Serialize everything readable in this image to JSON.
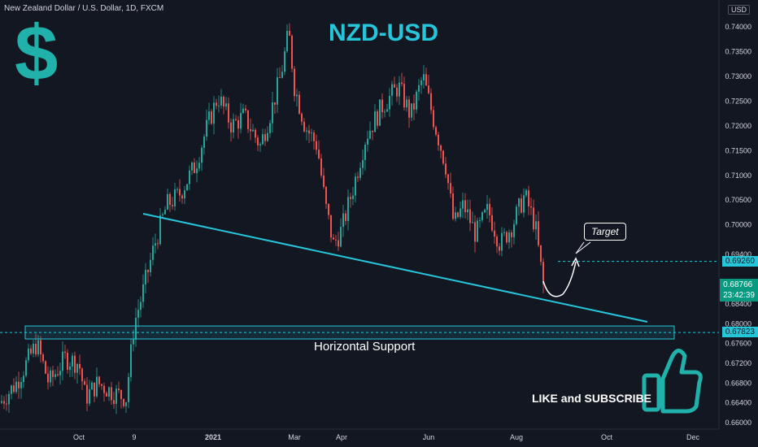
{
  "header": {
    "instrument": "New Zealand Dollar / U.S. Dollar, 1D, FXCM",
    "currency_badge": "USD"
  },
  "annotations": {
    "title": "NZD-USD",
    "dollar_sign": "$",
    "support_label": "Horizontal Support",
    "target_label": "Target",
    "cta": "LIKE and SUBSCRIBE"
  },
  "price_tags": {
    "target": "0.69260",
    "current": "0.68766",
    "countdown": "23:42:39",
    "support": "0.67823"
  },
  "colors": {
    "background": "#131722",
    "up_candle": "#26a69a",
    "down_candle": "#ef5350",
    "annotation": "#26c6da",
    "text": "#d1d4dc"
  },
  "chart_data": {
    "type": "candlestick",
    "symbol": "NZD-USD",
    "interval": "1D",
    "ylim": [
      0.66,
      0.7425
    ],
    "y_ticks": [
      "0.74000",
      "0.73500",
      "0.73000",
      "0.72500",
      "0.72000",
      "0.71500",
      "0.71000",
      "0.70500",
      "0.70000",
      "0.69400",
      "0.68840",
      "0.68400",
      "0.68000",
      "0.67600",
      "0.67200",
      "0.66800",
      "0.66400",
      "0.66000"
    ],
    "x_ticks": [
      "Oct",
      "9",
      "2021",
      "Mar",
      "Apr",
      "Jun",
      "Aug",
      "Oct",
      "Dec"
    ],
    "close_path": [
      [
        "start",
        0.664
      ],
      [
        "Oct",
        0.672
      ],
      [
        "9",
        0.68
      ],
      [
        "2021",
        0.726
      ],
      [
        "Mar",
        0.739
      ],
      [
        "Apr",
        0.695
      ],
      [
        "Jun",
        0.728
      ],
      [
        "Aug",
        0.7
      ],
      [
        "last",
        0.68766
      ]
    ],
    "levels": {
      "horizontal_support": 0.67823,
      "target": 0.6926,
      "current": 0.68766
    },
    "trendline": [
      [
        0.7025,
        "Nov"
      ],
      [
        0.6806,
        "Oct (2021)"
      ]
    ]
  }
}
